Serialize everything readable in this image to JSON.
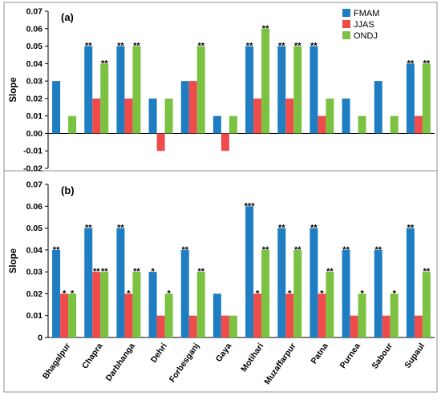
{
  "colors": {
    "FMAM": "#1f7ec2",
    "JJAS": "#f04b4b",
    "ONDJ": "#7cc242"
  },
  "chart_data": [
    {
      "type": "bar",
      "panel_label": "(a)",
      "ylabel": "Slope",
      "ylim": [
        -0.02,
        0.07
      ],
      "yticks": [
        "-0.02",
        "-0.01",
        "0.00",
        "0.01",
        "0.02",
        "0.03",
        "0.04",
        "0.05",
        "0.06",
        "0.07"
      ],
      "grid": false,
      "legend_position": "top-right",
      "categories": [
        "Bhagalpur",
        "Chapra",
        "Darbhanga",
        "Dehri",
        "Forbesganj",
        "Gaya",
        "Motihari",
        "Muzaffarpur",
        "Patna",
        "Purnea",
        "Sabour",
        "Supaul"
      ],
      "series": [
        {
          "name": "FMAM",
          "values": [
            0.03,
            0.05,
            0.05,
            0.02,
            0.03,
            0.01,
            0.05,
            0.05,
            0.05,
            0.02,
            0.03,
            0.04
          ],
          "stars": [
            "",
            "**",
            "**",
            "",
            "",
            "",
            "**",
            "**",
            "**",
            "",
            "",
            "**"
          ]
        },
        {
          "name": "JJAS",
          "values": [
            0,
            0.02,
            0.02,
            -0.01,
            0.03,
            -0.01,
            0.02,
            0.02,
            0.01,
            0,
            0,
            0.01
          ],
          "stars": [
            "",
            "",
            "",
            "",
            "",
            "",
            "",
            "",
            "",
            "",
            "",
            ""
          ]
        },
        {
          "name": "ONDJ",
          "values": [
            0.01,
            0.04,
            0.05,
            0.02,
            0.05,
            0.01,
            0.06,
            0.05,
            0.02,
            0.01,
            0.01,
            0.04
          ],
          "stars": [
            "",
            "**",
            "**",
            "",
            "**",
            "",
            "**",
            "**",
            "",
            "",
            "",
            "**"
          ]
        }
      ]
    },
    {
      "type": "bar",
      "panel_label": "(b)",
      "ylabel": "Slope",
      "ylim": [
        0,
        0.07
      ],
      "yticks": [
        "0",
        "0.01",
        "0.02",
        "0.03",
        "0.04",
        "0.05",
        "0.06",
        "0.07"
      ],
      "grid": false,
      "categories": [
        "Bhagalpur",
        "Chapra",
        "Darbhanga",
        "Dehri",
        "Forbesganj",
        "Gaya",
        "Motihari",
        "Muzaffarpur",
        "Patna",
        "Purnea",
        "Sabour",
        "Supaul"
      ],
      "series": [
        {
          "name": "FMAM",
          "values": [
            0.04,
            0.05,
            0.05,
            0.03,
            0.04,
            0.02,
            0.06,
            0.05,
            0.05,
            0.04,
            0.04,
            0.05
          ],
          "stars": [
            "**",
            "**",
            "**",
            "*",
            "**",
            "",
            "***",
            "**",
            "**",
            "**",
            "**",
            "**"
          ]
        },
        {
          "name": "JJAS",
          "values": [
            0.02,
            0.03,
            0.02,
            0.01,
            0.01,
            0.01,
            0.02,
            0.02,
            0.02,
            0.01,
            0.01,
            0.01
          ],
          "stars": [
            "*",
            "**",
            "*",
            "",
            "",
            "",
            "*",
            "*",
            "*",
            "",
            "",
            ""
          ]
        },
        {
          "name": "ONDJ",
          "values": [
            0.02,
            0.03,
            0.03,
            0.02,
            0.03,
            0.01,
            0.04,
            0.04,
            0.03,
            0.02,
            0.02,
            0.03
          ],
          "stars": [
            "*",
            "**",
            "**",
            "*",
            "**",
            "",
            "**",
            "**",
            "**",
            "*",
            "*",
            "**"
          ]
        }
      ]
    }
  ]
}
